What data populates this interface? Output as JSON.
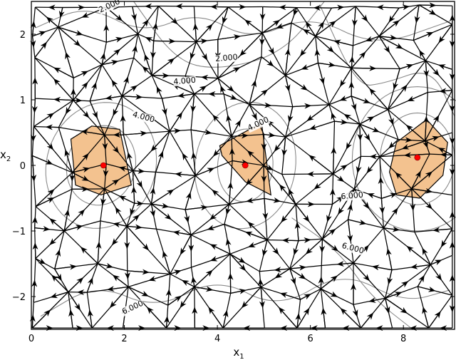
{
  "chart_data": {
    "type": "scatter",
    "xlabel": "x",
    "xlabel_sub": "1",
    "ylabel": "x",
    "ylabel_sub": "2",
    "xlim": [
      0,
      9.1
    ],
    "ylim": [
      -2.5,
      2.5
    ],
    "xticks": [
      "0",
      "2",
      "4",
      "6",
      "8"
    ],
    "xtick_values": [
      0,
      2,
      4,
      6,
      8
    ],
    "yticks": [
      "−2",
      "−1",
      "0",
      "1",
      "2"
    ],
    "ytick_values": [
      -2,
      -1,
      0,
      1,
      2
    ],
    "contour_labels": [
      "2.000",
      "4.000",
      "4.000",
      "4.000",
      "6.000",
      "6.000",
      "6.000",
      "2.000"
    ],
    "contour_label_points": [
      [
        1.7,
        2.4
      ],
      [
        3.3,
        1.25
      ],
      [
        2.4,
        0.7
      ],
      [
        4.9,
        0.6
      ],
      [
        6.9,
        -0.5
      ],
      [
        6.9,
        -1.3
      ],
      [
        2.2,
        -2.2
      ],
      [
        4.2,
        1.6
      ]
    ],
    "highlight_points": [
      [
        1.55,
        0.0
      ],
      [
        4.6,
        0.0
      ],
      [
        8.3,
        0.12
      ]
    ],
    "highlight_cells": [
      [
        [
          1.3,
          0.6
        ],
        [
          1.9,
          0.55
        ],
        [
          2.15,
          -0.3
        ],
        [
          1.5,
          -0.45
        ],
        [
          0.95,
          -0.3
        ],
        [
          0.85,
          0.4
        ]
      ],
      [
        [
          4.05,
          0.3
        ],
        [
          4.95,
          0.65
        ],
        [
          5.15,
          -0.45
        ],
        [
          4.6,
          -0.25
        ],
        [
          4.1,
          0.15
        ]
      ],
      [
        [
          8.5,
          0.7
        ],
        [
          8.95,
          0.35
        ],
        [
          8.85,
          -0.15
        ],
        [
          8.35,
          -0.5
        ],
        [
          7.85,
          -0.45
        ],
        [
          7.7,
          -0.1
        ],
        [
          7.85,
          0.35
        ]
      ]
    ],
    "colors": {
      "cell_fill": "#f3c28f",
      "cell_edge": "#000000",
      "highlight_point": "#ff0000",
      "contour": "#8a8a8a",
      "edge": "#000000"
    },
    "grid": false
  }
}
